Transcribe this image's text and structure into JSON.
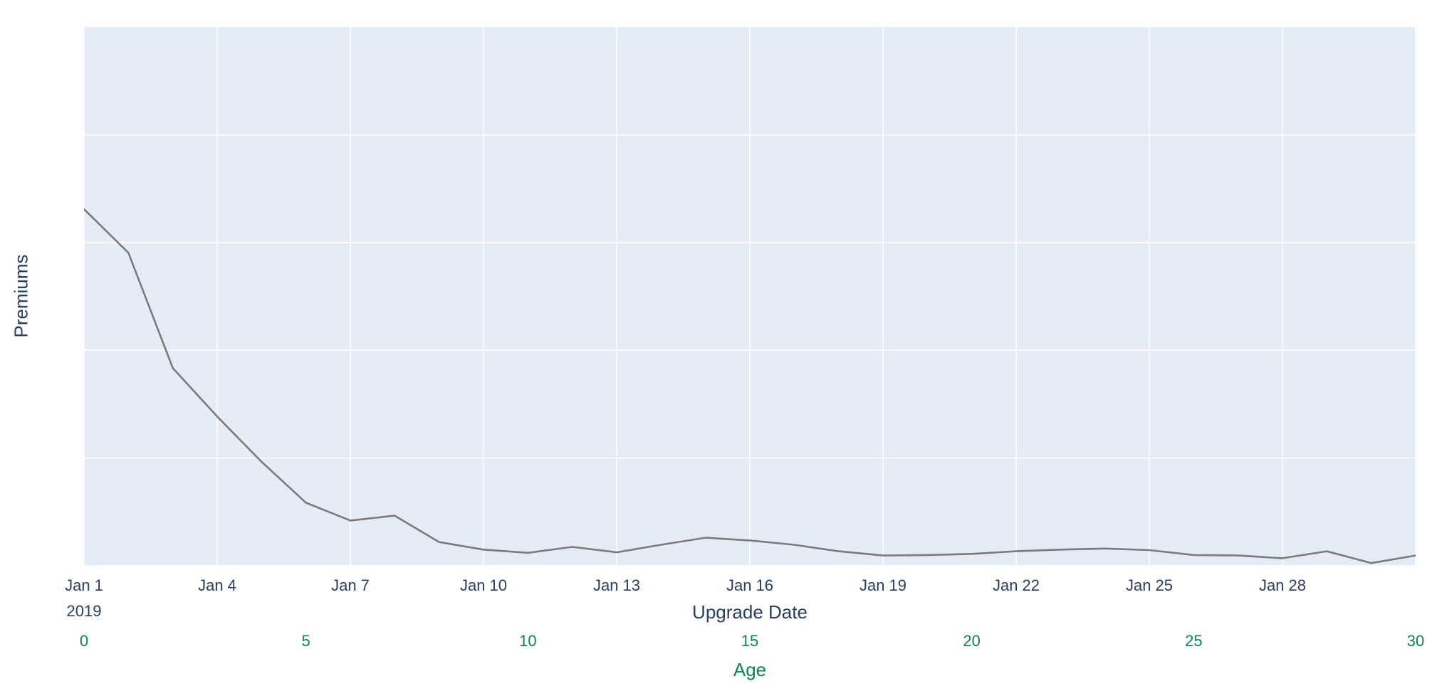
{
  "chart": {
    "plot_bg": "#e5ecf6",
    "grid_color": "#ffffff",
    "line_color": "#7b7b7b",
    "text_color": "#2a3f5f",
    "age_color": "#0c8354",
    "y_axis": {
      "title": "Premiums",
      "tick_labels_shown": false
    },
    "x_axis": {
      "title": "Upgrade Date",
      "year_label": "2019",
      "ticks": [
        "Jan 1",
        "Jan 4",
        "Jan 7",
        "Jan 10",
        "Jan 13",
        "Jan 16",
        "Jan 19",
        "Jan 22",
        "Jan 25",
        "Jan 28"
      ]
    },
    "age_axis": {
      "title": "Age",
      "ticks": [
        "0",
        "5",
        "10",
        "15",
        "20",
        "25",
        "30"
      ]
    }
  },
  "chart_data": {
    "type": "line",
    "title": "",
    "xlabel": "Upgrade Date",
    "x2label": "Age",
    "ylabel": "Premiums",
    "legend": false,
    "grid": true,
    "ylim": [
      0,
      100
    ],
    "xlim_age": [
      0,
      30
    ],
    "x_dates": [
      "Jan 1 2019",
      "Jan 2 2019",
      "Jan 3 2019",
      "Jan 4 2019",
      "Jan 5 2019",
      "Jan 6 2019",
      "Jan 7 2019",
      "Jan 8 2019",
      "Jan 9 2019",
      "Jan 10 2019",
      "Jan 11 2019",
      "Jan 12 2019",
      "Jan 13 2019",
      "Jan 14 2019",
      "Jan 15 2019",
      "Jan 16 2019",
      "Jan 17 2019",
      "Jan 18 2019",
      "Jan 19 2019",
      "Jan 20 2019",
      "Jan 21 2019",
      "Jan 22 2019",
      "Jan 23 2019",
      "Jan 24 2019",
      "Jan 25 2019",
      "Jan 26 2019",
      "Jan 27 2019",
      "Jan 28 2019",
      "Jan 29 2019",
      "Jan 30 2019",
      "Jan 31 2019"
    ],
    "age": [
      0,
      1,
      2,
      3,
      4,
      5,
      6,
      7,
      8,
      9,
      10,
      11,
      12,
      13,
      14,
      15,
      16,
      17,
      18,
      19,
      20,
      21,
      22,
      23,
      24,
      25,
      26,
      27,
      28,
      29,
      30
    ],
    "values": [
      66.2,
      58.1,
      36.7,
      27.7,
      19.3,
      11.7,
      8.4,
      9.3,
      4.4,
      3.0,
      2.4,
      3.5,
      2.5,
      3.9,
      5.2,
      4.7,
      3.9,
      2.7,
      1.9,
      2.0,
      2.2,
      2.7,
      3.0,
      3.2,
      2.9,
      2.0,
      1.9,
      1.4,
      2.7,
      0.5,
      1.9
    ],
    "values_unit": "relative (y axis unlabeled, 0-100 of plot height)",
    "xtick_ages": [
      0,
      3,
      6,
      9,
      12,
      15,
      18,
      21,
      24,
      27
    ],
    "x_gridline_ages": [
      0,
      3,
      6,
      9,
      12,
      15,
      18,
      21,
      24,
      27,
      30
    ],
    "x2tick_ages": [
      0,
      5,
      10,
      15,
      20,
      25,
      30
    ],
    "y_gridline_values": [
      0,
      20,
      40,
      60,
      80
    ]
  }
}
